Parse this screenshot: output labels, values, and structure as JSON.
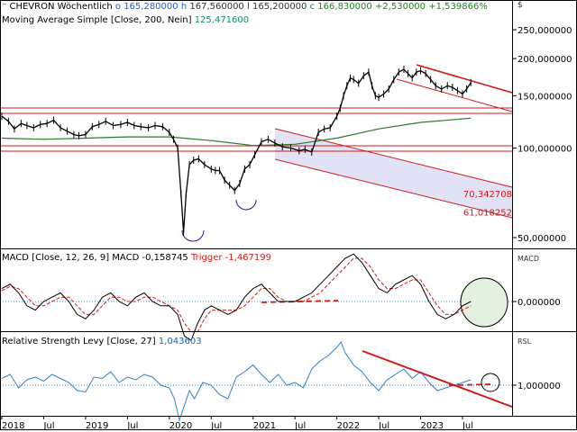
{
  "header": {
    "symbol": "CHEVRON",
    "period": "Wöchentlich",
    "open_label": "o",
    "open": "165,280000",
    "high_label": "h",
    "high": "167,560000",
    "low_label": "l",
    "low": "165,200000",
    "close_label": "c",
    "close": "166,830000",
    "change": "+2,530000",
    "change_pct": "+1,539866%",
    "currency": "$"
  },
  "sma": {
    "label": "Moving Average Simple",
    "params": "[Close, 200, Nein]",
    "value": "125,471600"
  },
  "macd": {
    "label": "MACD",
    "params": "[Close, 12, 26, 9]",
    "name": "MACD",
    "value": "-0,158745",
    "trigger_label": "Trigger",
    "trigger_value": "-1,467199",
    "unit": "MACD"
  },
  "rsl": {
    "label": "Relative Strength Levy",
    "params": "[Close, 27]",
    "value": "1,043603",
    "unit": "RSL"
  },
  "colors": {
    "price": "#000000",
    "sma": "#2a7a2a",
    "macd": "#000000",
    "trigger": "#d21818",
    "rsl": "#2f7fd0",
    "support": "#d21818",
    "channel_fill": "#e2e2f6",
    "circle_fill": "#e4f0e0"
  },
  "chart_data": [
    {
      "panel": "price",
      "type": "line",
      "scale": "log",
      "ylim": [
        44,
        300
      ],
      "yticks": [
        {
          "value": 250,
          "label": "250,000000"
        },
        {
          "value": 200,
          "label": "200,000000"
        },
        {
          "value": 150,
          "label": "150,000000"
        },
        {
          "value": 100,
          "label": "100,000000"
        },
        {
          "value": 50,
          "label": "50,000000"
        }
      ],
      "xlim": [
        2018.0,
        2023.92
      ],
      "xticks": [
        {
          "value": 2018.0,
          "label": "2018"
        },
        {
          "value": 2018.5,
          "label": "Jul"
        },
        {
          "value": 2019.0,
          "label": "2019"
        },
        {
          "value": 2019.5,
          "label": "Jul"
        },
        {
          "value": 2020.0,
          "label": "2020"
        },
        {
          "value": 2020.5,
          "label": "Jul"
        },
        {
          "value": 2021.0,
          "label": "2021"
        },
        {
          "value": 2021.5,
          "label": "Jul"
        },
        {
          "value": 2022.0,
          "label": "2022"
        },
        {
          "value": 2022.5,
          "label": "Jul"
        },
        {
          "value": 2023.0,
          "label": "2023"
        },
        {
          "value": 2023.5,
          "label": "Jul"
        }
      ],
      "series": [
        {
          "name": "CHEVRON",
          "x": [
            2018.0,
            2018.08,
            2018.15,
            2018.23,
            2018.3,
            2018.38,
            2018.46,
            2018.54,
            2018.62,
            2018.7,
            2018.78,
            2018.86,
            2018.92,
            2019.0,
            2019.08,
            2019.16,
            2019.24,
            2019.33,
            2019.42,
            2019.5,
            2019.58,
            2019.66,
            2019.75,
            2019.83,
            2019.92,
            2020.0,
            2020.05,
            2020.1,
            2020.14,
            2020.17,
            2020.2,
            2020.24,
            2020.29,
            2020.35,
            2020.42,
            2020.5,
            2020.55,
            2020.6,
            2020.66,
            2020.72,
            2020.78,
            2020.84,
            2020.9,
            2020.96,
            2021.02,
            2021.1,
            2021.18,
            2021.26,
            2021.35,
            2021.45,
            2021.55,
            2021.62,
            2021.7,
            2021.78,
            2021.85,
            2021.92,
            2022.0,
            2022.04,
            2022.08,
            2022.12,
            2022.16,
            2022.2,
            2022.26,
            2022.32,
            2022.38,
            2022.42,
            2022.46,
            2022.5,
            2022.56,
            2022.62,
            2022.68,
            2022.74,
            2022.8,
            2022.85,
            2022.9,
            2022.95,
            2023.0,
            2023.06,
            2023.12,
            2023.18,
            2023.25,
            2023.32,
            2023.38,
            2023.44,
            2023.5,
            2023.55,
            2023.6
          ],
          "values": [
            128,
            123,
            116,
            121,
            119,
            117,
            120,
            121,
            124,
            117,
            114,
            111,
            110,
            111,
            118,
            120,
            123,
            119,
            120,
            122,
            119,
            118,
            117,
            119,
            118,
            113,
            107,
            100,
            70,
            52,
            70,
            88,
            91,
            92,
            88,
            85,
            84,
            84,
            78,
            75,
            72,
            76,
            85,
            88,
            95,
            105,
            107,
            104,
            101,
            100,
            98,
            99,
            97,
            113,
            116,
            117,
            128,
            136,
            150,
            162,
            172,
            170,
            165,
            175,
            180,
            162,
            150,
            148,
            152,
            158,
            170,
            180,
            184,
            178,
            172,
            180,
            182,
            178,
            170,
            162,
            158,
            162,
            160,
            156,
            152,
            158,
            166
          ]
        },
        {
          "name": "Moving Average Simple",
          "x": [
            2018.0,
            2018.5,
            2019.0,
            2019.5,
            2020.0,
            2020.5,
            2021.0,
            2021.5,
            2022.0,
            2022.5,
            2023.0,
            2023.6
          ],
          "values": [
            108,
            107,
            108,
            109,
            109,
            106,
            102,
            103,
            108,
            116,
            122,
            126
          ]
        }
      ],
      "annotations": [
        {
          "text": "70,342708",
          "value": 70.342708
        },
        {
          "text": "61,018252",
          "value": 61.018252
        }
      ]
    },
    {
      "panel": "macd",
      "type": "line",
      "ylim": [
        -10,
        12
      ],
      "yticks": [
        {
          "value": 0,
          "label": "0,000000"
        }
      ],
      "series": [
        {
          "name": "MACD",
          "x": [
            2018.0,
            2018.1,
            2018.2,
            2018.3,
            2018.4,
            2018.5,
            2018.6,
            2018.7,
            2018.8,
            2018.9,
            2019.0,
            2019.1,
            2019.2,
            2019.3,
            2019.4,
            2019.5,
            2019.6,
            2019.7,
            2019.8,
            2019.9,
            2020.0,
            2020.1,
            2020.18,
            2020.26,
            2020.34,
            2020.42,
            2020.5,
            2020.6,
            2020.7,
            2020.8,
            2020.9,
            2021.0,
            2021.1,
            2021.2,
            2021.3,
            2021.4,
            2021.5,
            2021.6,
            2021.7,
            2021.8,
            2021.9,
            2022.0,
            2022.1,
            2022.2,
            2022.3,
            2022.4,
            2022.5,
            2022.6,
            2022.7,
            2022.8,
            2022.9,
            2023.0,
            2023.1,
            2023.2,
            2023.3,
            2023.4,
            2023.5,
            2023.6
          ],
          "values": [
            3,
            4,
            2,
            -1,
            -2,
            0,
            1,
            2,
            0,
            -3,
            -4,
            -2,
            1,
            2,
            0,
            -1,
            1,
            2,
            0,
            -1,
            -1,
            -3,
            -8,
            -9,
            -5,
            -2,
            -1,
            -2,
            -3,
            -2,
            1,
            3,
            4,
            2,
            0,
            0,
            0,
            1,
            2,
            4,
            6,
            8,
            10,
            11,
            9,
            6,
            3,
            2,
            4,
            5,
            6,
            4,
            0,
            -3,
            -4,
            -3,
            -1,
            0
          ]
        },
        {
          "name": "Trigger",
          "x": [
            2018.0,
            2018.1,
            2018.2,
            2018.3,
            2018.4,
            2018.5,
            2018.6,
            2018.7,
            2018.8,
            2018.9,
            2019.0,
            2019.1,
            2019.2,
            2019.3,
            2019.4,
            2019.5,
            2019.6,
            2019.7,
            2019.8,
            2019.9,
            2020.0,
            2020.1,
            2020.18,
            2020.26,
            2020.34,
            2020.42,
            2020.5,
            2020.6,
            2020.7,
            2020.8,
            2020.9,
            2021.0,
            2021.1,
            2021.2,
            2021.3,
            2021.4,
            2021.5,
            2021.6,
            2021.7,
            2021.8,
            2021.9,
            2022.0,
            2022.1,
            2022.2,
            2022.3,
            2022.4,
            2022.5,
            2022.6,
            2022.7,
            2022.8,
            2022.9,
            2023.0,
            2023.1,
            2023.2,
            2023.3,
            2023.4,
            2023.5,
            2023.6
          ],
          "values": [
            2.5,
            3.5,
            3,
            1,
            -1,
            -1,
            0,
            1,
            1,
            -1,
            -3,
            -3,
            -1,
            1,
            1,
            0,
            0,
            1,
            1,
            0,
            -1,
            -2,
            -5,
            -7,
            -7,
            -4,
            -2,
            -2,
            -2,
            -2,
            -1,
            1,
            3,
            3,
            1,
            0,
            0,
            0,
            1,
            2,
            4,
            6,
            8,
            10,
            10,
            8,
            5,
            3,
            3,
            4,
            5,
            5,
            2,
            -1,
            -3,
            -3,
            -2,
            -1
          ]
        }
      ]
    },
    {
      "panel": "rsl",
      "type": "line",
      "ylim": [
        0.6,
        1.45
      ],
      "yticks": [
        {
          "value": 1.0,
          "label": "1,000000"
        }
      ],
      "series": [
        {
          "name": "Relative Strength Levy",
          "x": [
            2018.0,
            2018.1,
            2018.2,
            2018.3,
            2018.4,
            2018.5,
            2018.6,
            2018.7,
            2018.8,
            2018.9,
            2019.0,
            2019.1,
            2019.2,
            2019.3,
            2019.4,
            2019.5,
            2019.6,
            2019.7,
            2019.8,
            2019.9,
            2020.0,
            2020.06,
            2020.12,
            2020.18,
            2020.24,
            2020.3,
            2020.4,
            2020.5,
            2020.6,
            2020.7,
            2020.8,
            2020.9,
            2021.0,
            2021.1,
            2021.2,
            2021.3,
            2021.4,
            2021.5,
            2021.6,
            2021.7,
            2021.8,
            2021.9,
            2022.0,
            2022.05,
            2022.1,
            2022.2,
            2022.3,
            2022.4,
            2022.5,
            2022.6,
            2022.7,
            2022.8,
            2022.9,
            2023.0,
            2023.1,
            2023.2,
            2023.3,
            2023.4,
            2023.5,
            2023.6
          ],
          "values": [
            1.05,
            1.08,
            0.98,
            1.04,
            1.06,
            1.03,
            1.08,
            1.05,
            1.02,
            0.96,
            0.95,
            1.06,
            1.05,
            1.1,
            1.02,
            1.06,
            1.04,
            1.08,
            1.06,
            1.0,
            0.98,
            0.9,
            0.74,
            0.85,
            0.96,
            0.9,
            1.02,
            1.0,
            0.93,
            0.9,
            1.06,
            1.1,
            1.15,
            1.08,
            1.02,
            1.08,
            1.0,
            1.02,
            0.98,
            1.12,
            1.18,
            1.22,
            1.28,
            1.32,
            1.24,
            1.15,
            1.1,
            1.02,
            0.96,
            1.04,
            1.08,
            1.12,
            1.05,
            1.1,
            1.02,
            0.96,
            0.98,
            1.0,
            1.02,
            1.04
          ]
        }
      ]
    }
  ]
}
